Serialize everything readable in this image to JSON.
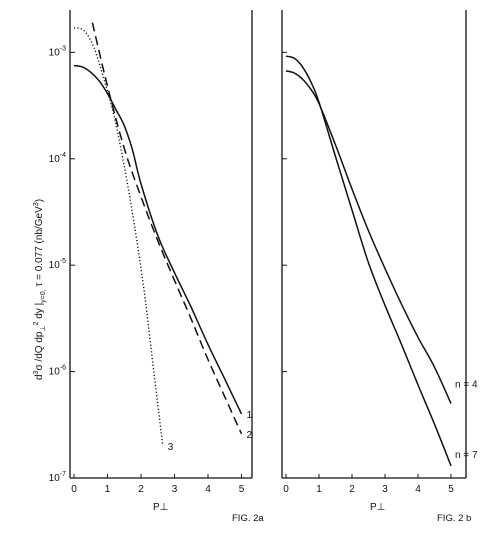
{
  "ylabel_parts": {
    "d1": "d",
    "e1": "3",
    "s1": "σ /dQ dp",
    "s2": "⊥",
    "e2": "2",
    "s3": " dy |",
    "s4": "y=0,",
    "s5": " τ = 0.077 (nb/GeV",
    "e3": "3",
    "s6": ")"
  },
  "chart_data": [
    {
      "type": "line",
      "figure_label": "FIG. 2a",
      "xlabel": "P⊥",
      "ylabel": "d³σ/dQ dp⊥² dy |y=0, τ=0.077 (nb/GeV³)",
      "xlim": [
        0,
        5.4
      ],
      "ylim": [
        1e-07,
        0.0025
      ],
      "yscale": "log",
      "xticks": [
        0,
        1,
        2,
        3,
        4,
        5
      ],
      "yticks": [
        {
          "value": 0.001,
          "base": "10",
          "exp": "-3"
        },
        {
          "value": 0.0001,
          "base": "10",
          "exp": "-4"
        },
        {
          "value": 1e-05,
          "base": "10",
          "exp": "-5"
        },
        {
          "value": 1e-06,
          "base": "10",
          "exp": "-6"
        },
        {
          "value": 1e-07,
          "base": "10",
          "exp": "-7"
        }
      ],
      "grid": false,
      "series": [
        {
          "name": "1",
          "style": "solid",
          "x": [
            0,
            0.25,
            0.5,
            0.75,
            1.0,
            1.25,
            1.5,
            1.75,
            2.0,
            2.5,
            3.0,
            3.5,
            4.0,
            4.5,
            5.0
          ],
          "y": [
            0.00075,
            0.00073,
            0.00065,
            0.00054,
            0.00041,
            0.00029,
            0.000205,
            0.00012,
            5.8e-05,
            1.9e-05,
            8.5e-06,
            4e-06,
            1.8e-06,
            8.5e-07,
            4e-07
          ]
        },
        {
          "name": "2",
          "style": "dashed",
          "x": [
            0.55,
            1.0,
            1.5,
            2.0,
            2.5,
            3.0,
            3.5,
            4.0,
            4.5,
            5.0
          ],
          "y": [
            0.0019,
            0.00048,
            0.000125,
            4.4e-05,
            1.7e-05,
            7.2e-06,
            3.1e-06,
            1.3e-06,
            5.8e-07,
            2.6e-07
          ]
        },
        {
          "name": "3",
          "style": "dotted",
          "x": [
            0,
            0.3,
            0.6,
            0.9,
            1.2,
            1.5,
            1.8,
            2.1,
            2.4,
            2.65
          ],
          "y": [
            0.0017,
            0.0016,
            0.0011,
            0.00055,
            0.00025,
            8.5e-05,
            2.4e-05,
            5.5e-06,
            9e-07,
            2e-07
          ]
        }
      ]
    },
    {
      "type": "line",
      "figure_label": "FIG. 2 b",
      "xlabel": "P⊥",
      "xlim": [
        0,
        5.4
      ],
      "ylim": [
        1e-07,
        0.0025
      ],
      "yscale": "log",
      "xticks": [
        0,
        1,
        2,
        3,
        4,
        5
      ],
      "grid": false,
      "series": [
        {
          "name": "n = 4",
          "style": "solid",
          "x": [
            0,
            0.25,
            0.5,
            0.75,
            1.0,
            1.5,
            2.0,
            2.5,
            3.0,
            3.5,
            4.0,
            4.5,
            5.0
          ],
          "y": [
            0.00067,
            0.00064,
            0.00056,
            0.00045,
            0.00033,
            0.000135,
            5.2e-05,
            2.1e-05,
            9.3e-06,
            4.3e-06,
            2.1e-06,
            1.1e-06,
            5e-07
          ]
        },
        {
          "name": "n = 7",
          "style": "solid",
          "x": [
            0,
            0.25,
            0.5,
            0.75,
            1.0,
            1.5,
            2.0,
            2.5,
            3.0,
            3.5,
            4.0,
            4.5,
            5.0
          ],
          "y": [
            0.00092,
            0.00088,
            0.00073,
            0.00053,
            0.00034,
            0.000105,
            3.3e-05,
            1.05e-05,
            4.2e-06,
            1.8e-06,
            7.5e-07,
            3.2e-07,
            1.3e-07
          ]
        }
      ]
    }
  ]
}
